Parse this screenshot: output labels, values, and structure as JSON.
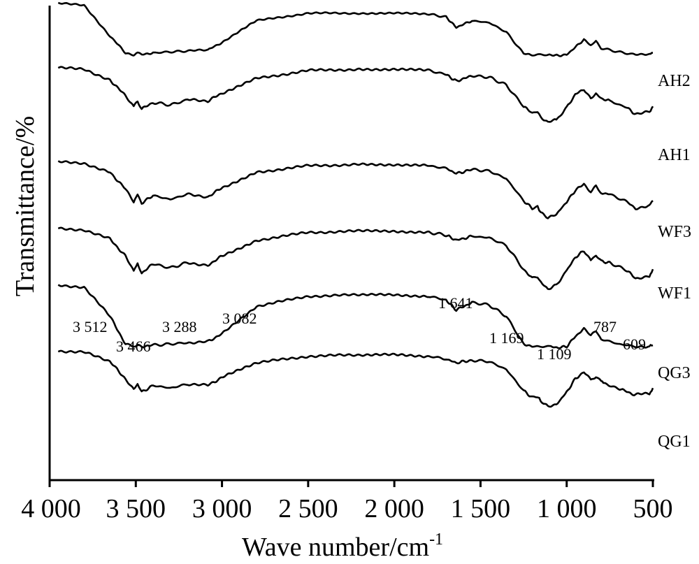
{
  "chart_data": {
    "type": "line",
    "title": "",
    "xlabel": "Wave number/cm",
    "xlabel_superscript": "-1",
    "ylabel": "Transmittance/%",
    "xlim": [
      4000,
      500
    ],
    "x_reversed": true,
    "y_ticks_shown": false,
    "grid": false,
    "legend": "none (series labelled at right end of each trace)",
    "x_ticks": [
      {
        "value": 4000,
        "label": "4 000"
      },
      {
        "value": 3500,
        "label": "3 500"
      },
      {
        "value": 3000,
        "label": "3 000"
      },
      {
        "value": 2500,
        "label": "2 500"
      },
      {
        "value": 2000,
        "label": "2 000"
      },
      {
        "value": 1500,
        "label": "1 500"
      },
      {
        "value": 1000,
        "label": "1 000"
      },
      {
        "value": 500,
        "label": "500"
      }
    ],
    "series": [
      {
        "name": "AH2",
        "x": [
          3950,
          3800,
          3650,
          3560,
          3512,
          3490,
          3466,
          3400,
          3300,
          3200,
          3082,
          3000,
          2800,
          2500,
          2200,
          2000,
          1800,
          1700,
          1641,
          1550,
          1450,
          1350,
          1250,
          1200,
          1169,
          1100,
          1050,
          1000,
          950,
          900,
          860,
          830,
          800,
          700,
          600,
          520,
          500
        ],
        "y": [
          0.97,
          0.94,
          0.62,
          0.44,
          0.42,
          0.44,
          0.42,
          0.44,
          0.45,
          0.46,
          0.47,
          0.55,
          0.78,
          0.86,
          0.86,
          0.86,
          0.85,
          0.82,
          0.71,
          0.78,
          0.76,
          0.66,
          0.43,
          0.42,
          0.42,
          0.42,
          0.41,
          0.42,
          0.5,
          0.58,
          0.52,
          0.56,
          0.49,
          0.45,
          0.42,
          0.42,
          0.44
        ]
      },
      {
        "name": "AH1",
        "x": [
          3950,
          3800,
          3650,
          3560,
          3512,
          3490,
          3466,
          3400,
          3300,
          3200,
          3082,
          3000,
          2800,
          2500,
          2200,
          2000,
          1800,
          1700,
          1641,
          1550,
          1450,
          1350,
          1250,
          1200,
          1169,
          1150,
          1109,
          1060,
          1000,
          950,
          900,
          860,
          830,
          800,
          750,
          650,
          600,
          520,
          500
        ],
        "y": [
          0.91,
          0.9,
          0.82,
          0.7,
          0.62,
          0.66,
          0.6,
          0.65,
          0.63,
          0.67,
          0.66,
          0.72,
          0.83,
          0.89,
          0.9,
          0.9,
          0.89,
          0.86,
          0.81,
          0.85,
          0.84,
          0.78,
          0.62,
          0.57,
          0.58,
          0.54,
          0.5,
          0.52,
          0.61,
          0.71,
          0.75,
          0.68,
          0.72,
          0.68,
          0.66,
          0.61,
          0.56,
          0.58,
          0.62
        ]
      },
      {
        "name": "WF3",
        "x": [
          3950,
          3800,
          3650,
          3560,
          3512,
          3490,
          3466,
          3400,
          3300,
          3200,
          3082,
          3000,
          2800,
          2500,
          2200,
          2000,
          1800,
          1700,
          1641,
          1550,
          1450,
          1350,
          1250,
          1200,
          1169,
          1150,
          1109,
          1060,
          1000,
          950,
          900,
          860,
          830,
          800,
          750,
          650,
          600,
          520,
          500
        ],
        "y": [
          0.91,
          0.9,
          0.83,
          0.7,
          0.6,
          0.66,
          0.59,
          0.65,
          0.62,
          0.66,
          0.64,
          0.71,
          0.83,
          0.88,
          0.89,
          0.89,
          0.88,
          0.86,
          0.82,
          0.85,
          0.84,
          0.78,
          0.61,
          0.55,
          0.56,
          0.52,
          0.48,
          0.5,
          0.6,
          0.69,
          0.74,
          0.68,
          0.72,
          0.67,
          0.66,
          0.6,
          0.55,
          0.57,
          0.61
        ]
      },
      {
        "name": "WF1",
        "x": [
          3950,
          3800,
          3650,
          3560,
          3512,
          3490,
          3466,
          3400,
          3300,
          3200,
          3082,
          3000,
          2800,
          2500,
          2200,
          2000,
          1800,
          1700,
          1641,
          1550,
          1450,
          1350,
          1250,
          1200,
          1169,
          1150,
          1109,
          1060,
          1000,
          950,
          900,
          860,
          830,
          800,
          750,
          650,
          600,
          520,
          500
        ],
        "y": [
          0.91,
          0.9,
          0.83,
          0.7,
          0.58,
          0.65,
          0.57,
          0.64,
          0.61,
          0.65,
          0.63,
          0.7,
          0.82,
          0.88,
          0.89,
          0.89,
          0.88,
          0.86,
          0.82,
          0.85,
          0.84,
          0.78,
          0.6,
          0.53,
          0.54,
          0.5,
          0.45,
          0.48,
          0.59,
          0.69,
          0.74,
          0.67,
          0.71,
          0.66,
          0.65,
          0.59,
          0.53,
          0.55,
          0.6
        ]
      },
      {
        "name": "QG3",
        "x": [
          3950,
          3800,
          3650,
          3560,
          3512,
          3490,
          3466,
          3400,
          3300,
          3200,
          3082,
          3000,
          2800,
          2500,
          2200,
          2000,
          1800,
          1700,
          1641,
          1550,
          1450,
          1350,
          1250,
          1200,
          1169,
          1100,
          1050,
          1000,
          950,
          900,
          860,
          830,
          800,
          700,
          600,
          520,
          500
        ],
        "y": [
          0.93,
          0.91,
          0.68,
          0.46,
          0.44,
          0.45,
          0.44,
          0.45,
          0.46,
          0.47,
          0.48,
          0.54,
          0.76,
          0.84,
          0.85,
          0.85,
          0.84,
          0.81,
          0.73,
          0.79,
          0.77,
          0.68,
          0.46,
          0.44,
          0.44,
          0.44,
          0.43,
          0.44,
          0.52,
          0.58,
          0.53,
          0.56,
          0.5,
          0.46,
          0.44,
          0.44,
          0.45
        ]
      },
      {
        "name": "QG1",
        "x": [
          3950,
          3800,
          3650,
          3560,
          3512,
          3490,
          3466,
          3400,
          3300,
          3200,
          3082,
          3000,
          2800,
          2500,
          2200,
          2000,
          1800,
          1700,
          1641,
          1550,
          1450,
          1350,
          1250,
          1200,
          1169,
          1150,
          1109,
          1060,
          1000,
          950,
          900,
          860,
          830,
          800,
          787,
          700,
          609,
          520,
          500
        ],
        "y": [
          0.91,
          0.9,
          0.83,
          0.7,
          0.62,
          0.66,
          0.6,
          0.65,
          0.63,
          0.66,
          0.65,
          0.71,
          0.82,
          0.87,
          0.88,
          0.88,
          0.87,
          0.85,
          0.82,
          0.84,
          0.83,
          0.77,
          0.61,
          0.56,
          0.57,
          0.53,
          0.49,
          0.51,
          0.6,
          0.7,
          0.75,
          0.69,
          0.72,
          0.68,
          0.67,
          0.63,
          0.58,
          0.59,
          0.63
        ]
      }
    ],
    "annotations": [
      {
        "label": "3 512",
        "x": 3512
      },
      {
        "label": "3 466",
        "x": 3466
      },
      {
        "label": "3 288",
        "x": 3288
      },
      {
        "label": "3 082",
        "x": 3082
      },
      {
        "label": "1 641",
        "x": 1641
      },
      {
        "label": "1 169",
        "x": 1169
      },
      {
        "label": "1 109",
        "x": 1109
      },
      {
        "label": "787",
        "x": 787
      },
      {
        "label": "609",
        "x": 609
      }
    ]
  }
}
